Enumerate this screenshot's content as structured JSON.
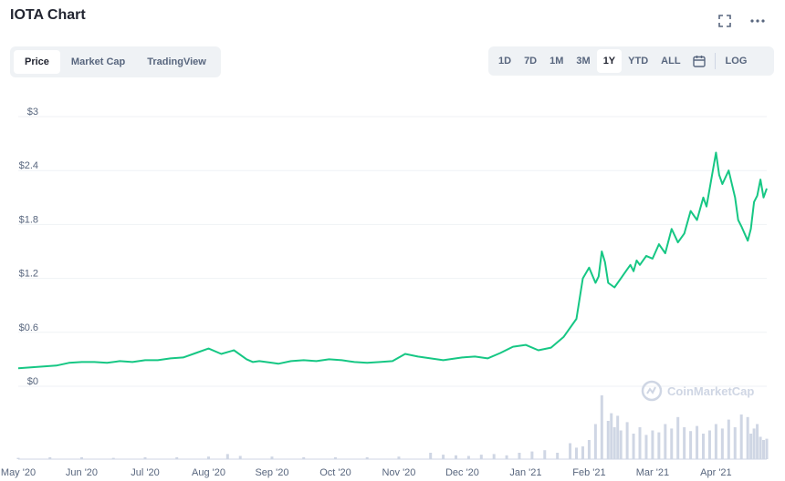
{
  "header": {
    "title": "IOTA Chart",
    "fullscreen_icon": "expand-icon",
    "more_icon": "more-icon"
  },
  "tabs": [
    {
      "label": "Price",
      "active": true
    },
    {
      "label": "Market Cap",
      "active": false
    },
    {
      "label": "TradingView",
      "active": false
    }
  ],
  "ranges": [
    {
      "label": "1D",
      "active": false
    },
    {
      "label": "7D",
      "active": false
    },
    {
      "label": "1M",
      "active": false
    },
    {
      "label": "3M",
      "active": false
    },
    {
      "label": "1Y",
      "active": true
    },
    {
      "label": "YTD",
      "active": false
    },
    {
      "label": "ALL",
      "active": false
    }
  ],
  "log_label": "LOG",
  "calendar_icon": "calendar-icon",
  "watermark": "CoinMarketCap",
  "colors": {
    "line": "#16c784",
    "volume": "#cfd6e4",
    "grid": "#eff2f5",
    "text": "#58667e"
  },
  "chart_data": {
    "type": "line",
    "title": "",
    "xlabel": "",
    "ylabel": "",
    "ylim": [
      0,
      3
    ],
    "y_ticks": [
      "$3",
      "$2.4",
      "$1.8",
      "$1.2",
      "$0.6",
      "$0"
    ],
    "x_ticks": [
      "May '20",
      "Jun '20",
      "Jul '20",
      "Aug '20",
      "Sep '20",
      "Oct '20",
      "Nov '20",
      "Dec '20",
      "Jan '21",
      "Feb '21",
      "Mar '21",
      "Apr '21"
    ],
    "x_positions": [
      0.5,
      1.5,
      2.5,
      3.5,
      4.5,
      5.5,
      6.5,
      7.5,
      8.5,
      9.5,
      10.5,
      11.5
    ],
    "x_range": [
      0.5,
      12.3
    ],
    "series": [
      {
        "x": [
          0.5,
          0.7,
          0.9,
          1.1,
          1.3,
          1.5,
          1.7,
          1.9,
          2.1,
          2.3,
          2.5,
          2.7,
          2.9,
          3.1,
          3.3,
          3.5,
          3.7,
          3.9,
          4.1,
          4.2,
          4.3,
          4.5,
          4.6,
          4.8,
          5.0,
          5.2,
          5.4,
          5.6,
          5.8,
          6.0,
          6.2,
          6.4,
          6.6,
          6.8,
          7.0,
          7.2,
          7.3,
          7.5,
          7.7,
          7.9,
          8.1,
          8.3,
          8.5,
          8.7,
          8.9,
          9.1,
          9.3,
          9.4,
          9.5,
          9.6,
          9.65,
          9.7,
          9.75,
          9.8,
          9.9,
          10.0,
          10.05,
          10.1,
          10.15,
          10.2,
          10.25,
          10.3,
          10.4,
          10.5,
          10.6,
          10.7,
          10.8,
          10.9,
          11.0,
          11.1,
          11.2,
          11.3,
          11.35,
          11.4,
          11.5,
          11.55,
          11.6,
          11.7,
          11.8,
          11.85,
          11.9,
          11.95,
          12.0,
          12.05,
          12.1,
          12.15,
          12.2,
          12.25,
          12.3
        ],
        "values": [
          0.2,
          0.21,
          0.22,
          0.23,
          0.26,
          0.27,
          0.27,
          0.26,
          0.28,
          0.27,
          0.29,
          0.29,
          0.31,
          0.32,
          0.37,
          0.42,
          0.36,
          0.4,
          0.3,
          0.27,
          0.28,
          0.26,
          0.25,
          0.28,
          0.29,
          0.28,
          0.3,
          0.29,
          0.27,
          0.26,
          0.27,
          0.28,
          0.36,
          0.33,
          0.31,
          0.29,
          0.3,
          0.32,
          0.33,
          0.31,
          0.37,
          0.44,
          0.46,
          0.4,
          0.43,
          0.55,
          0.75,
          1.2,
          1.32,
          1.15,
          1.22,
          1.5,
          1.38,
          1.15,
          1.1,
          1.2,
          1.25,
          1.3,
          1.35,
          1.28,
          1.4,
          1.35,
          1.45,
          1.42,
          1.58,
          1.48,
          1.75,
          1.6,
          1.7,
          1.95,
          1.85,
          2.1,
          2.0,
          2.2,
          2.6,
          2.35,
          2.25,
          2.4,
          2.1,
          1.85,
          1.78,
          1.7,
          1.62,
          1.75,
          2.05,
          2.12,
          2.3,
          2.1,
          2.2
        ]
      }
    ],
    "volume": {
      "x": [
        0.5,
        1.0,
        1.5,
        2.0,
        2.5,
        3.0,
        3.5,
        3.8,
        4.0,
        4.5,
        5.0,
        5.5,
        6.0,
        6.5,
        7.0,
        7.2,
        7.4,
        7.6,
        7.8,
        8.0,
        8.2,
        8.4,
        8.6,
        8.8,
        9.0,
        9.2,
        9.3,
        9.4,
        9.5,
        9.6,
        9.7,
        9.8,
        9.85,
        9.9,
        9.95,
        10.0,
        10.1,
        10.2,
        10.3,
        10.4,
        10.5,
        10.6,
        10.7,
        10.8,
        10.9,
        11.0,
        11.1,
        11.2,
        11.3,
        11.4,
        11.5,
        11.6,
        11.7,
        11.8,
        11.9,
        12.0,
        12.05,
        12.1,
        12.15,
        12.2,
        12.25,
        12.3
      ],
      "values": [
        0.02,
        0.03,
        0.03,
        0.02,
        0.03,
        0.03,
        0.04,
        0.08,
        0.05,
        0.04,
        0.03,
        0.03,
        0.03,
        0.04,
        0.1,
        0.07,
        0.06,
        0.05,
        0.07,
        0.08,
        0.06,
        0.1,
        0.12,
        0.14,
        0.1,
        0.25,
        0.18,
        0.2,
        0.3,
        0.55,
        1.0,
        0.6,
        0.72,
        0.5,
        0.68,
        0.45,
        0.58,
        0.4,
        0.5,
        0.38,
        0.45,
        0.42,
        0.55,
        0.48,
        0.66,
        0.5,
        0.44,
        0.52,
        0.4,
        0.45,
        0.55,
        0.48,
        0.62,
        0.5,
        0.7,
        0.66,
        0.4,
        0.48,
        0.55,
        0.35,
        0.3,
        0.32
      ]
    }
  }
}
